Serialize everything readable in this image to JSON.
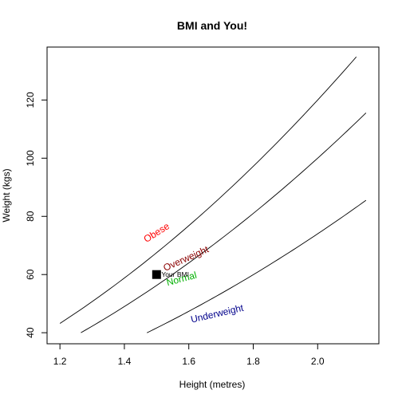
{
  "chart_data": {
    "type": "line",
    "title": "BMI and You!",
    "xlabel": "Height (metres)",
    "ylabel": "Weight (kgs)",
    "xlim": [
      1.16,
      2.19
    ],
    "ylim": [
      36.2,
      138.2
    ],
    "x_ticks": [
      1.2,
      1.4,
      1.6,
      1.8,
      2.0
    ],
    "x_tick_labels": [
      "1.2",
      "1.4",
      "1.6",
      "1.8",
      "2.0"
    ],
    "y_ticks": [
      40,
      60,
      80,
      100,
      120
    ],
    "y_tick_labels": [
      "40",
      "60",
      "80",
      "100",
      "120"
    ],
    "grid": false,
    "series": [
      {
        "bmi": 30,
        "x_start": 1.2,
        "x_end": 2.12,
        "color": "#000000"
      },
      {
        "bmi": 25,
        "x_start": 1.265,
        "x_end": 2.15,
        "color": "#000000"
      },
      {
        "bmi": 18.5,
        "x_start": 1.47,
        "x_end": 2.15,
        "color": "#000000"
      }
    ],
    "annotations": [
      {
        "text": "Obese",
        "x": 1.505,
        "y": 73.5,
        "angle": -32,
        "color": "#ff0000"
      },
      {
        "text": "Overweight",
        "x": 1.595,
        "y": 64.5,
        "angle": -24,
        "color": "#8b0000"
      },
      {
        "text": "Normal",
        "x": 1.58,
        "y": 57.5,
        "angle": -15,
        "color": "#00b000"
      },
      {
        "text": "Underweight",
        "x": 1.69,
        "y": 45.5,
        "angle": -13,
        "color": "#00008b"
      }
    ],
    "point": {
      "label": "Your BMI",
      "x": 1.5,
      "y": 60,
      "color": "#000000"
    }
  }
}
